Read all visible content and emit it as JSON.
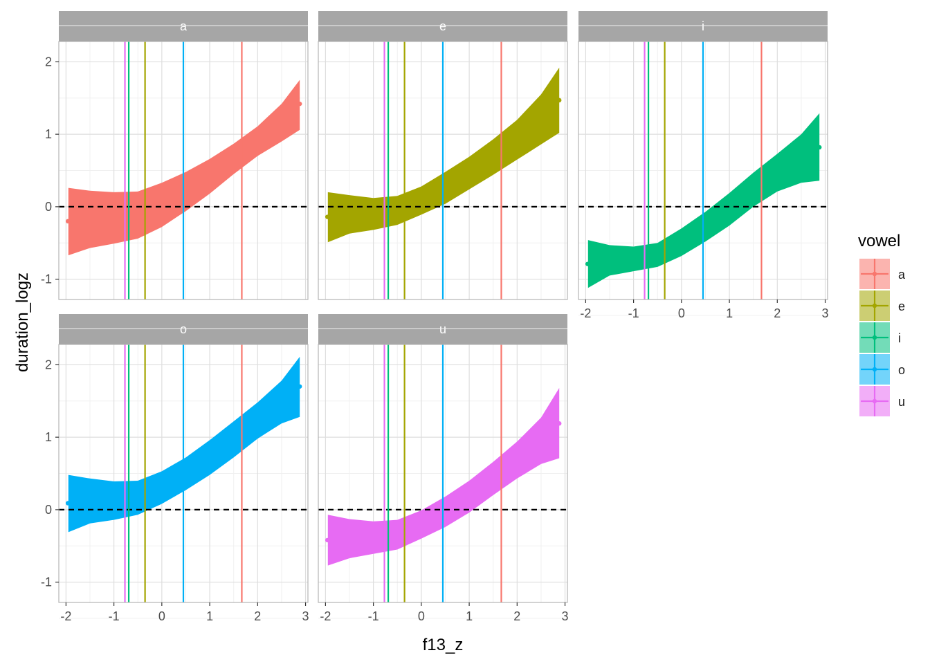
{
  "chart_data": {
    "type": "area",
    "xlabel": "f13_z",
    "ylabel": "duration_logz",
    "xlim": [
      -2.15,
      3.05
    ],
    "ylim": [
      -1.28,
      2.28
    ],
    "xticks": [
      -2,
      -1,
      0,
      1,
      2,
      3
    ],
    "xtick_labels": [
      "-2",
      "-1",
      "0",
      "1",
      "2",
      "3"
    ],
    "yticks": [
      -1,
      0,
      1,
      2
    ],
    "ytick_labels": [
      "-1",
      "0",
      "1",
      "2"
    ],
    "reference_hline": 0,
    "grid": true,
    "legend": {
      "title": "vowel",
      "placement": "right"
    },
    "vowels": [
      {
        "name": "a",
        "color": "#F8766D",
        "vline_x": 1.67
      },
      {
        "name": "e",
        "color": "#A3A500",
        "vline_x": -0.35
      },
      {
        "name": "i",
        "color": "#00BF7D",
        "vline_x": -0.69
      },
      {
        "name": "o",
        "color": "#00B0F6",
        "vline_x": 0.45
      },
      {
        "name": "u",
        "color": "#E76BF3",
        "vline_x": -0.77
      }
    ],
    "x": [
      -1.95,
      -1.5,
      -1.0,
      -0.5,
      0.0,
      0.5,
      1.0,
      1.5,
      2.0,
      2.5,
      2.88
    ],
    "panels": [
      {
        "label": "a",
        "vowel": "a",
        "ribbon_upper": [
          0.26,
          0.22,
          0.2,
          0.21,
          0.33,
          0.48,
          0.66,
          0.87,
          1.11,
          1.42,
          1.75
        ],
        "ribbon_lower": [
          -0.67,
          -0.57,
          -0.51,
          -0.44,
          -0.28,
          -0.06,
          0.18,
          0.45,
          0.7,
          0.9,
          1.06
        ],
        "point": [
          -1.96,
          -0.2
        ],
        "point_end": [
          2.88,
          1.42
        ]
      },
      {
        "label": "e",
        "vowel": "e",
        "ribbon_upper": [
          0.2,
          0.16,
          0.12,
          0.15,
          0.28,
          0.48,
          0.69,
          0.93,
          1.2,
          1.55,
          1.92
        ],
        "ribbon_lower": [
          -0.49,
          -0.37,
          -0.32,
          -0.25,
          -0.11,
          0.04,
          0.24,
          0.44,
          0.65,
          0.86,
          1.02
        ],
        "point": [
          -1.96,
          -0.14
        ],
        "point_end": [
          2.88,
          1.47
        ]
      },
      {
        "label": "i",
        "vowel": "i",
        "ribbon_upper": [
          -0.46,
          -0.53,
          -0.55,
          -0.5,
          -0.3,
          -0.07,
          0.19,
          0.47,
          0.73,
          1.0,
          1.29
        ],
        "ribbon_lower": [
          -1.12,
          -0.95,
          -0.89,
          -0.83,
          -0.68,
          -0.48,
          -0.26,
          0.0,
          0.21,
          0.33,
          0.36
        ],
        "point": [
          -1.96,
          -0.79
        ],
        "point_end": [
          2.88,
          0.82
        ]
      },
      {
        "label": "o",
        "vowel": "o",
        "ribbon_upper": [
          0.48,
          0.43,
          0.39,
          0.4,
          0.53,
          0.72,
          0.96,
          1.22,
          1.48,
          1.78,
          2.11
        ],
        "ribbon_lower": [
          -0.31,
          -0.19,
          -0.14,
          -0.07,
          0.08,
          0.27,
          0.48,
          0.72,
          0.98,
          1.19,
          1.28
        ],
        "point": [
          -1.96,
          0.09
        ],
        "point_end": [
          2.88,
          1.7
        ]
      },
      {
        "label": "u",
        "vowel": "u",
        "ribbon_upper": [
          -0.07,
          -0.13,
          -0.16,
          -0.14,
          -0.01,
          0.18,
          0.4,
          0.66,
          0.94,
          1.27,
          1.68
        ],
        "ribbon_lower": [
          -0.77,
          -0.67,
          -0.61,
          -0.55,
          -0.4,
          -0.24,
          -0.04,
          0.2,
          0.43,
          0.63,
          0.71
        ],
        "point": [
          -1.96,
          -0.42
        ],
        "point_end": [
          2.88,
          1.19
        ]
      }
    ]
  }
}
